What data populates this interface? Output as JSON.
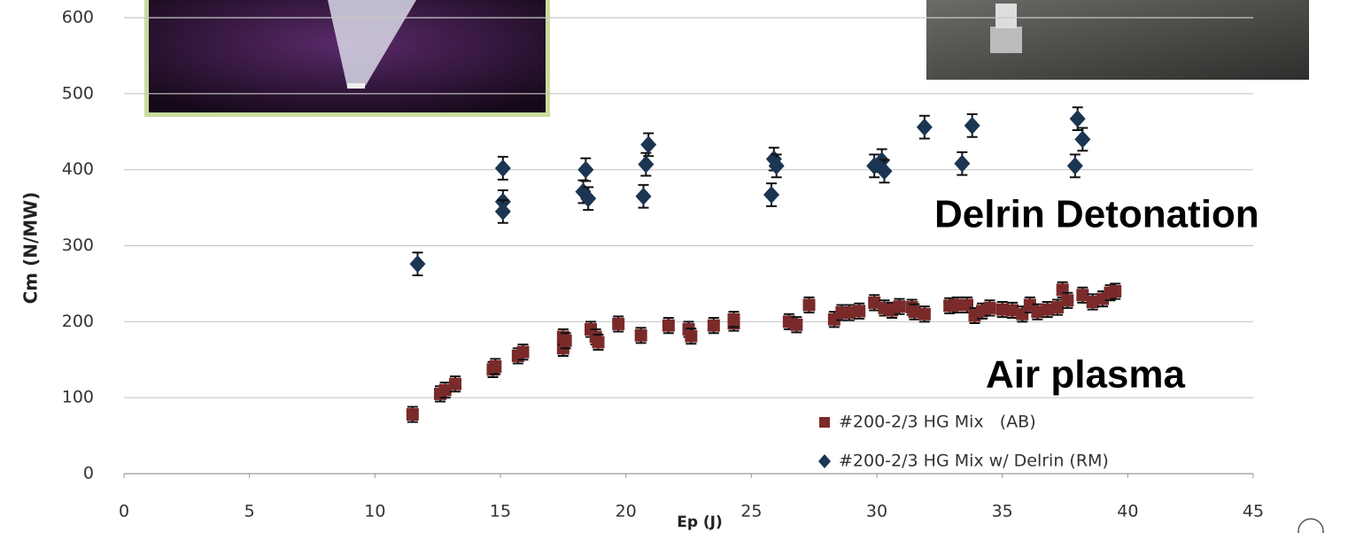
{
  "chart_data": {
    "type": "scatter",
    "x_label": "Ep (J)",
    "y_label": "Cm (N/MW)",
    "annotations": [
      "Delrin Detonation",
      "Air plasma"
    ],
    "xlim": [
      0,
      45
    ],
    "xticks": [
      0,
      5,
      10,
      15,
      20,
      25,
      30,
      35,
      40,
      45
    ],
    "ylim": [
      0,
      600
    ],
    "yticks": [
      0,
      100,
      200,
      300,
      400,
      500,
      600
    ],
    "grid": true,
    "legend": "lower right",
    "series": [
      {
        "name": "#200-2/3 HG Mix   (AB)",
        "color": "#7b2a2a",
        "marker": "square",
        "error": 10,
        "x": [
          11.5,
          12.6,
          12.8,
          13.2,
          14.7,
          14.8,
          15.7,
          15.9,
          17.5,
          17.5,
          17.6,
          18.6,
          18.8,
          18.9,
          19.7,
          20.6,
          21.7,
          22.5,
          22.6,
          23.5,
          24.3,
          24.3,
          26.5,
          26.8,
          27.3,
          28.3,
          28.6,
          28.9,
          29.3,
          29.9,
          30.3,
          30.6,
          30.9,
          31.4,
          31.5,
          31.9,
          32.9,
          33.2,
          33.6,
          33.9,
          34.2,
          34.5,
          35.0,
          35.4,
          35.8,
          36.1,
          36.4,
          36.8,
          37.2,
          37.4,
          37.6,
          38.2,
          38.6,
          39.0,
          39.3,
          39.5
        ],
        "values": [
          78,
          105,
          110,
          118,
          137,
          141,
          155,
          160,
          165,
          180,
          175,
          190,
          180,
          173,
          197,
          182,
          195,
          190,
          181,
          195,
          198,
          203,
          200,
          196,
          222,
          203,
          212,
          212,
          214,
          225,
          218,
          215,
          220,
          219,
          213,
          210,
          221,
          222,
          222,
          208,
          214,
          218,
          216,
          215,
          210,
          222,
          213,
          216,
          219,
          242,
          228,
          235,
          226,
          230,
          238,
          240
        ]
      },
      {
        "name": "#200-2/3 HG Mix w/ Delrin (RM)",
        "color": "#1b3553",
        "marker": "diamond",
        "error": 15,
        "x": [
          11.7,
          15.1,
          15.1,
          15.1,
          18.3,
          18.4,
          18.5,
          20.7,
          20.8,
          20.9,
          25.8,
          25.9,
          26.0,
          29.9,
          30.2,
          30.3,
          31.9,
          33.4,
          33.8,
          37.9,
          38.0,
          38.2
        ],
        "values": [
          276,
          402,
          358,
          345,
          371,
          400,
          362,
          365,
          407,
          433,
          367,
          414,
          405,
          405,
          412,
          398,
          456,
          408,
          458,
          405,
          467,
          440
        ]
      }
    ]
  }
}
